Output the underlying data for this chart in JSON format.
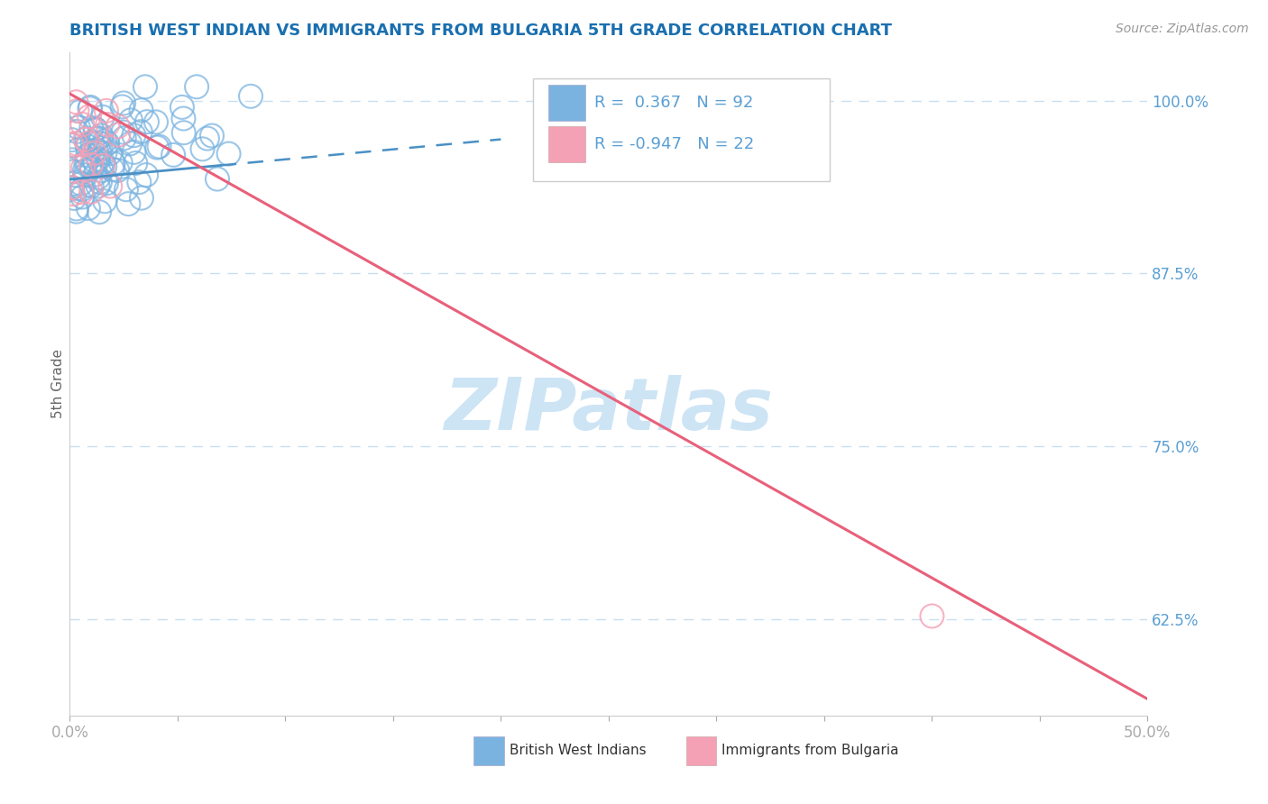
{
  "title": "BRITISH WEST INDIAN VS IMMIGRANTS FROM BULGARIA 5TH GRADE CORRELATION CHART",
  "source": "Source: ZipAtlas.com",
  "ylabel": "5th Grade",
  "xlim": [
    0.0,
    0.5
  ],
  "ylim": [
    0.555,
    1.035
  ],
  "xticks": [
    0.0,
    0.05,
    0.1,
    0.15,
    0.2,
    0.25,
    0.3,
    0.35,
    0.4,
    0.45,
    0.5
  ],
  "yticks_right": [
    0.625,
    0.75,
    0.875,
    1.0
  ],
  "yticklabels_right": [
    "62.5%",
    "75.0%",
    "87.5%",
    "100.0%"
  ],
  "blue_color": "#7ab3e0",
  "pink_color": "#f4a0b5",
  "blue_line_color": "#4a90c4",
  "pink_line_color": "#e8607a",
  "legend_r_blue": "0.367",
  "legend_n_blue": "92",
  "legend_r_pink": "-0.947",
  "legend_n_pink": "22",
  "title_color": "#1a6faf",
  "axis_color": "#5a9fd4",
  "watermark": "ZIPatlas",
  "watermark_color": "#cde4f5",
  "background_color": "#ffffff",
  "grid_color": "#c8dff0",
  "pink_trend_x0": 0.0,
  "pink_trend_y0": 1.005,
  "pink_trend_x1": 0.5,
  "pink_trend_y1": 0.567,
  "blue_trend_x0": 0.0,
  "blue_trend_y0": 0.943,
  "blue_trend_x1": 0.2,
  "blue_trend_y1": 0.972
}
